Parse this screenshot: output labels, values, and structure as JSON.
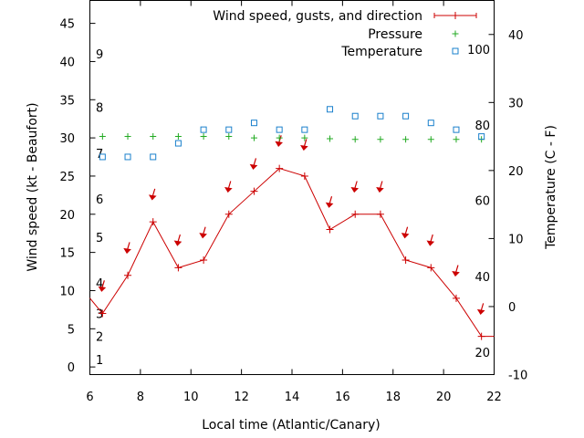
{
  "chart_data": {
    "type": "line",
    "xlabel": "Local time (Atlantic/Canary)",
    "ylabel": "Wind speed (kt - Beaufort)",
    "y2label": "Temperature (C - F)",
    "xlim": [
      6,
      22
    ],
    "ylim": [
      -1,
      48
    ],
    "y2lim": [
      -10,
      45
    ],
    "x_ticks": [
      6,
      8,
      10,
      12,
      14,
      16,
      18,
      20,
      22
    ],
    "y_ticks": [
      0,
      5,
      10,
      15,
      20,
      25,
      30,
      35,
      40,
      45
    ],
    "y2_ticks": [
      -10,
      0,
      10,
      20,
      30,
      40
    ],
    "beaufort_labels": [
      {
        "label": "1",
        "y": 1
      },
      {
        "label": "2",
        "y": 4
      },
      {
        "label": "3",
        "y": 7
      },
      {
        "label": "4",
        "y": 11
      },
      {
        "label": "5",
        "y": 17
      },
      {
        "label": "6",
        "y": 22
      },
      {
        "label": "7",
        "y": 28
      },
      {
        "label": "8",
        "y": 34
      },
      {
        "label": "9",
        "y": 41
      }
    ],
    "fahrenheit_labels": [
      {
        "label": "20",
        "y2": -6.7
      },
      {
        "label": "40",
        "y2": 4.4
      },
      {
        "label": "60",
        "y2": 15.6
      },
      {
        "label": "80",
        "y2": 26.7
      },
      {
        "label": "100",
        "y2": 37.8
      }
    ],
    "legend": {
      "position": "top-right",
      "entries": [
        {
          "label": "Wind speed, gusts, and direction",
          "color": "#cc0000",
          "marker": "line-plus"
        },
        {
          "label": "Pressure",
          "color": "#22aa22",
          "marker": "plus"
        },
        {
          "label": "Temperature",
          "color": "#1a80cc",
          "marker": "square"
        }
      ]
    },
    "series": [
      {
        "name": "Wind speed, gusts, and direction",
        "color": "#cc0000",
        "x": [
          5.5,
          6.5,
          7.5,
          8.5,
          9.5,
          10.5,
          11.5,
          12.5,
          13.5,
          14.5,
          15.5,
          16.5,
          17.5,
          18.5,
          19.5,
          20.5,
          21.5,
          22.5
        ],
        "values": [
          11,
          7,
          12,
          19,
          13,
          14,
          20,
          23,
          26,
          25,
          18,
          20,
          20,
          14,
          13,
          9,
          4,
          4
        ]
      },
      {
        "name": "Direction arrows",
        "color": "#cc0000",
        "x": [
          6.5,
          7.5,
          8.5,
          9.5,
          10.5,
          11.5,
          12.5,
          13.5,
          14.5,
          15.5,
          16.5,
          17.5,
          18.5,
          19.5,
          20.5,
          21.5
        ],
        "values": [
          10.5,
          15.5,
          22.5,
          16.5,
          17.5,
          23.5,
          26.5,
          29.5,
          29,
          21.5,
          23.5,
          23.5,
          17.5,
          16.5,
          12.5,
          7.5
        ]
      },
      {
        "name": "Pressure",
        "color": "#22aa22",
        "x": [
          6.5,
          7.5,
          8.5,
          9.5,
          10.5,
          11.5,
          12.5,
          13.5,
          14.5,
          15.5,
          16.5,
          17.5,
          18.5,
          19.5,
          20.5,
          21.5
        ],
        "values": [
          30.2,
          30.2,
          30.2,
          30.2,
          30.2,
          30.2,
          30.0,
          30.0,
          30.0,
          29.9,
          29.8,
          29.8,
          29.8,
          29.8,
          29.8,
          29.8
        ]
      },
      {
        "name": "Temperature",
        "color": "#1a80cc",
        "axis": "y2",
        "x": [
          6.5,
          7.5,
          8.5,
          9.5,
          10.5,
          11.5,
          12.5,
          13.5,
          14.5,
          15.5,
          16.5,
          17.5,
          18.5,
          19.5,
          20.5,
          21.5
        ],
        "values": [
          22,
          22,
          22,
          24,
          26,
          26,
          27,
          26,
          26,
          29,
          28,
          28,
          28,
          27,
          26,
          25
        ]
      }
    ]
  }
}
